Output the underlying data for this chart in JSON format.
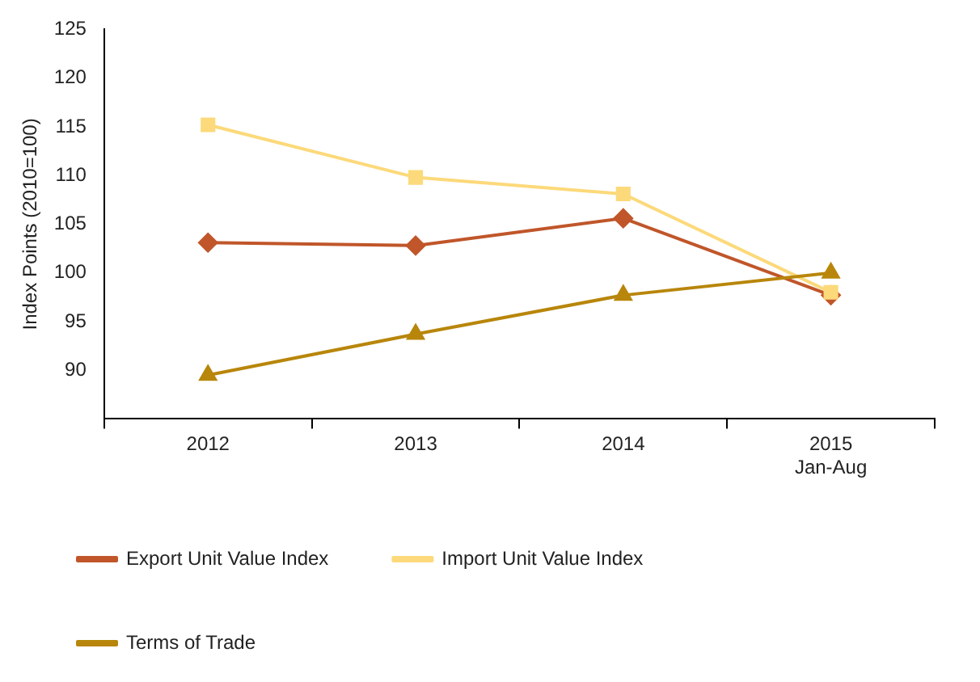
{
  "chart_data": {
    "type": "line",
    "ylabel": "Index Points (2010=100)",
    "categories": [
      "2012",
      "2013",
      "2014",
      "2015\nJan-Aug"
    ],
    "series": [
      {
        "name": "Export Unit Value Index",
        "color": "#c0562a",
        "marker": "diamond",
        "values": [
          103.1,
          102.8,
          105.6,
          97.7
        ]
      },
      {
        "name": "Import Unit Value Index",
        "color": "#fcd97a",
        "marker": "square",
        "values": [
          115.2,
          109.8,
          108.1,
          98.0
        ]
      },
      {
        "name": "Terms of Trade",
        "color": "#b8860b",
        "marker": "triangle",
        "values": [
          89.5,
          93.7,
          97.7,
          100.0
        ]
      }
    ],
    "ylim": [
      85,
      125
    ],
    "yticks": [
      90,
      95,
      100,
      105,
      110,
      115,
      120,
      125
    ],
    "grid": false,
    "legend": "bottom",
    "line_style": "solid"
  }
}
